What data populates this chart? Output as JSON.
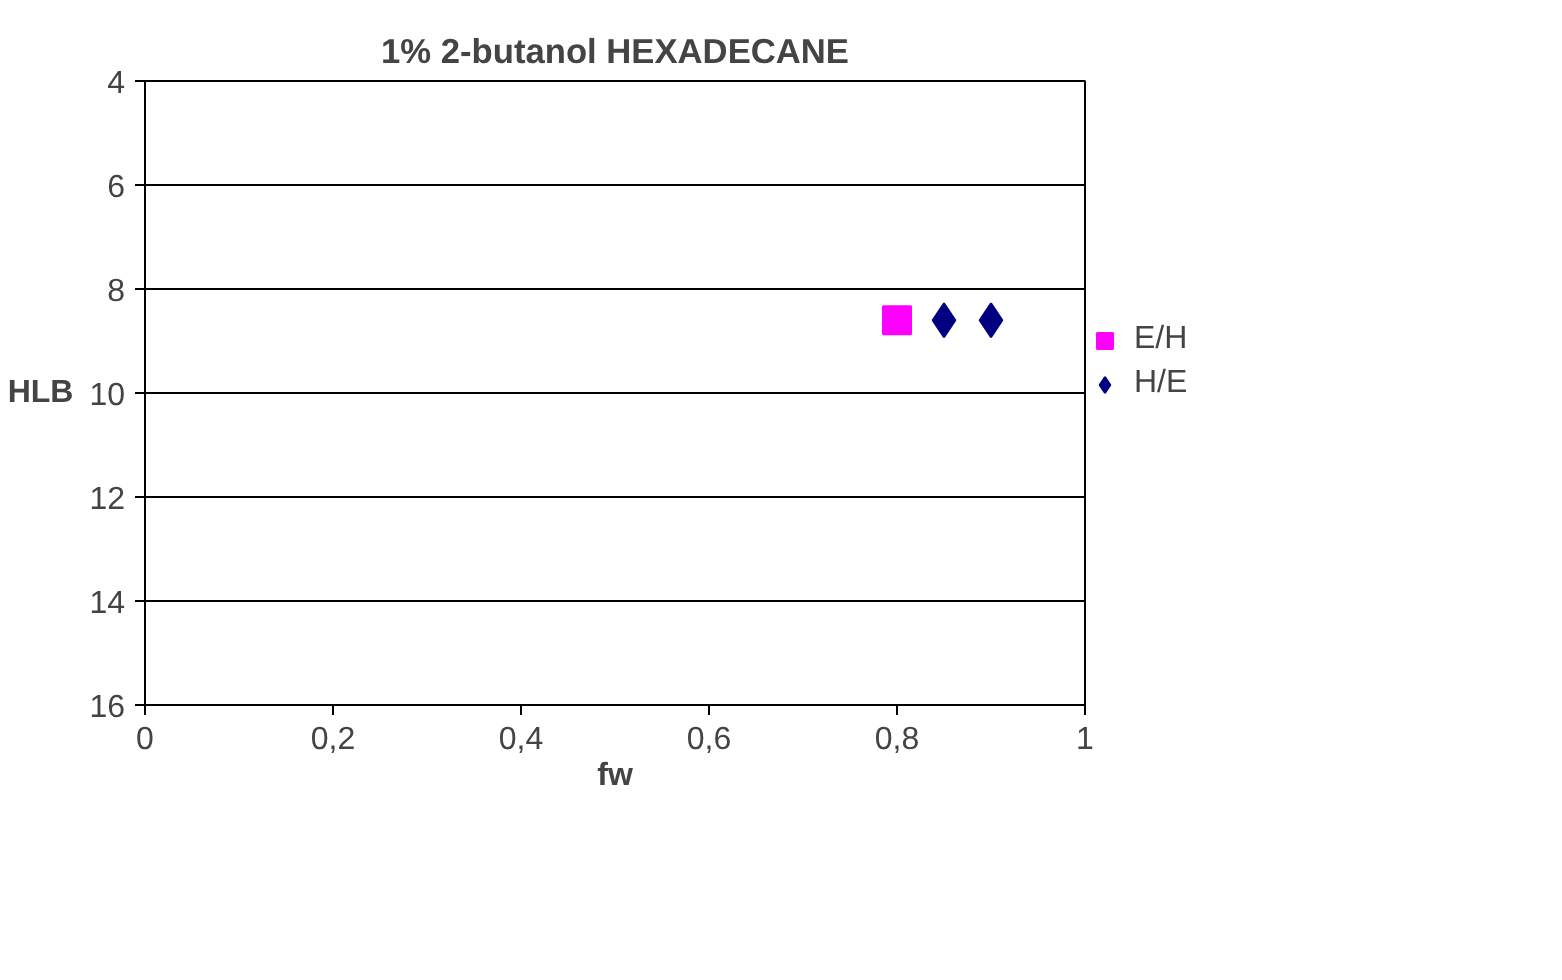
{
  "chart_data": {
    "type": "scatter",
    "title": "1% 2-butanol HEXADECANE",
    "xlabel": "fw",
    "ylabel": "HLB",
    "xlim": [
      0,
      1
    ],
    "xticks": [
      {
        "value": 0,
        "label": "0"
      },
      {
        "value": 0.2,
        "label": "0,2"
      },
      {
        "value": 0.4,
        "label": "0,4"
      },
      {
        "value": 0.6,
        "label": "0,6"
      },
      {
        "value": 0.8,
        "label": "0,8"
      },
      {
        "value": 1,
        "label": "1"
      }
    ],
    "ylim": [
      16,
      4
    ],
    "yticks": [
      4,
      6,
      8,
      10,
      12,
      14,
      16
    ],
    "grid": "y",
    "legend": "right",
    "series": [
      {
        "name": "E/H",
        "color": "#ff00ff",
        "marker": "square",
        "x": [
          0.8
        ],
        "values": [
          8.6
        ]
      },
      {
        "name": "H/E",
        "color": "#000080",
        "marker": "diamond",
        "x": [
          0.85,
          0.9
        ],
        "values": [
          8.6,
          8.6
        ]
      }
    ]
  }
}
